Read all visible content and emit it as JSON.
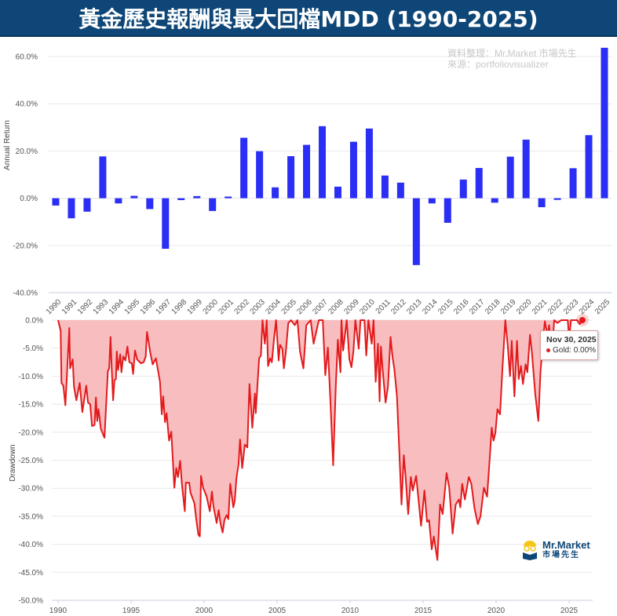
{
  "title": "黃金歷史報酬與最大回檔MDD (1990-2025)",
  "watermark": {
    "line1": "資料整理：Mr.Market 市場先生",
    "line2": "來源：portfoliovisualizer"
  },
  "logo": {
    "name": "Mr.Market",
    "subtitle": "市場先生"
  },
  "tooltip": {
    "date": "Nov 30, 2025",
    "series": "Gold",
    "value": "0.00%"
  },
  "colors": {
    "title_bg": "#0d4677",
    "bar": "#2b2ef5",
    "drawdown_line": "#e31a1c",
    "drawdown_fill": "#f8b9bc"
  },
  "chart_data": [
    {
      "type": "bar",
      "ylabel": "Annual Return",
      "ylim": [
        -40,
        60
      ],
      "yticks": [
        60,
        40,
        20,
        0,
        -20,
        -40
      ],
      "ytick_labels": [
        "60.0%",
        "40.0%",
        "20.0%",
        "0.0%",
        "-20.0%",
        "-40.0%"
      ],
      "grid": true,
      "categories": [
        "1990",
        "1991",
        "1992",
        "1993",
        "1994",
        "1995",
        "1996",
        "1997",
        "1998",
        "1999",
        "2000",
        "2001",
        "2002",
        "2003",
        "2004",
        "2005",
        "2006",
        "2007",
        "2008",
        "2009",
        "2010",
        "2011",
        "2012",
        "2013",
        "2014",
        "2015",
        "2016",
        "2017",
        "2018",
        "2019",
        "2020",
        "2021",
        "2022",
        "2023",
        "2024",
        "2025"
      ],
      "values": [
        -3.1,
        -8.5,
        -5.7,
        17.7,
        -2.2,
        1.0,
        -4.6,
        -21.4,
        -0.8,
        0.9,
        -5.4,
        0.7,
        25.6,
        19.9,
        4.6,
        17.8,
        22.6,
        30.5,
        4.9,
        23.9,
        29.5,
        9.6,
        6.6,
        -28.3,
        -2.2,
        -10.4,
        7.9,
        12.8,
        -1.9,
        17.6,
        24.8,
        -3.8,
        -0.7,
        12.7,
        26.7,
        63.7
      ]
    },
    {
      "type": "area",
      "ylabel": "Drawdown",
      "series_name": "Gold",
      "ylim": [
        -50,
        0
      ],
      "xlim": [
        1990,
        2026.5
      ],
      "yticks": [
        0,
        -5,
        -10,
        -15,
        -20,
        -25,
        -30,
        -35,
        -40,
        -45,
        -50
      ],
      "ytick_labels": [
        "0.0%",
        "-5.0%",
        "-10.0%",
        "-15.0%",
        "-20.0%",
        "-25.0%",
        "-30.0%",
        "-35.0%",
        "-40.0%",
        "-45.0%",
        "-50.0%"
      ],
      "xticks": [
        "1990",
        "1995",
        "2000",
        "2005",
        "2010",
        "2015",
        "2020",
        "2025"
      ],
      "grid": true,
      "points": [
        [
          1990.0,
          0
        ],
        [
          1990.18,
          -1.9
        ],
        [
          1990.23,
          -11.2
        ],
        [
          1990.36,
          -11.7
        ],
        [
          1990.5,
          -15.2
        ],
        [
          1990.77,
          -1.4
        ],
        [
          1990.82,
          -8.6
        ],
        [
          1991.0,
          -7.0
        ],
        [
          1991.09,
          -11.9
        ],
        [
          1991.25,
          -14.3
        ],
        [
          1991.48,
          -11.2
        ],
        [
          1991.66,
          -16.4
        ],
        [
          1991.93,
          -11.7
        ],
        [
          1992.05,
          -14.7
        ],
        [
          1992.2,
          -15.0
        ],
        [
          1992.32,
          -18.9
        ],
        [
          1992.5,
          -18.7
        ],
        [
          1992.59,
          -13.8
        ],
        [
          1992.68,
          -18.0
        ],
        [
          1992.77,
          -15.9
        ],
        [
          1992.93,
          -19.4
        ],
        [
          1993.18,
          -21.0
        ],
        [
          1993.41,
          -9.1
        ],
        [
          1993.5,
          -8.6
        ],
        [
          1993.59,
          -3.0
        ],
        [
          1993.68,
          -8.9
        ],
        [
          1993.77,
          -14.3
        ],
        [
          1993.86,
          -10.7
        ],
        [
          1993.96,
          -10.5
        ],
        [
          1994.02,
          -5.6
        ],
        [
          1994.11,
          -8.9
        ],
        [
          1994.25,
          -6.1
        ],
        [
          1994.34,
          -9.3
        ],
        [
          1994.46,
          -6.5
        ],
        [
          1994.61,
          -7.2
        ],
        [
          1994.75,
          -4.7
        ],
        [
          1994.88,
          -7.5
        ],
        [
          1995.05,
          -7.7
        ],
        [
          1995.14,
          -9.6
        ],
        [
          1995.27,
          -5.4
        ],
        [
          1995.41,
          -7.0
        ],
        [
          1995.68,
          -7.7
        ],
        [
          1995.86,
          -7.5
        ],
        [
          1996.0,
          -6.5
        ],
        [
          1996.09,
          -2.1
        ],
        [
          1996.3,
          -5.6
        ],
        [
          1996.48,
          -7.9
        ],
        [
          1996.7,
          -6.8
        ],
        [
          1996.84,
          -8.9
        ],
        [
          1996.98,
          -11.0
        ],
        [
          1997.1,
          -16.8
        ],
        [
          1997.2,
          -13.6
        ],
        [
          1997.32,
          -18.2
        ],
        [
          1997.43,
          -16.6
        ],
        [
          1997.6,
          -21.5
        ],
        [
          1997.75,
          -19.9
        ],
        [
          1997.96,
          -29.9
        ],
        [
          1998.09,
          -26.4
        ],
        [
          1998.21,
          -28.0
        ],
        [
          1998.36,
          -25.1
        ],
        [
          1998.48,
          -29.2
        ],
        [
          1998.68,
          -34.1
        ],
        [
          1998.75,
          -29.0
        ],
        [
          1998.98,
          -29.0
        ],
        [
          1999.07,
          -30.8
        ],
        [
          1999.34,
          -32.7
        ],
        [
          1999.46,
          -35.5
        ],
        [
          1999.61,
          -38.3
        ],
        [
          1999.71,
          -38.6
        ],
        [
          1999.79,
          -27.8
        ],
        [
          1999.93,
          -29.9
        ],
        [
          2000.18,
          -31.5
        ],
        [
          2000.29,
          -32.9
        ],
        [
          2000.39,
          -34.1
        ],
        [
          2000.54,
          -30.6
        ],
        [
          2000.64,
          -33.2
        ],
        [
          2000.86,
          -36.2
        ],
        [
          2001.0,
          -33.9
        ],
        [
          2001.12,
          -36.2
        ],
        [
          2001.27,
          -37.9
        ],
        [
          2001.39,
          -35.7
        ],
        [
          2001.54,
          -34.8
        ],
        [
          2001.66,
          -35.5
        ],
        [
          2001.79,
          -29.2
        ],
        [
          2002.0,
          -33.4
        ],
        [
          2002.1,
          -32.2
        ],
        [
          2002.21,
          -28.3
        ],
        [
          2002.36,
          -25.7
        ],
        [
          2002.46,
          -21.3
        ],
        [
          2002.61,
          -26.4
        ],
        [
          2002.79,
          -22.2
        ],
        [
          2002.96,
          -22.7
        ],
        [
          2003.11,
          -11.4
        ],
        [
          2003.3,
          -19.2
        ],
        [
          2003.48,
          -13.1
        ],
        [
          2003.54,
          -16.6
        ],
        [
          2003.77,
          -6.8
        ],
        [
          2003.89,
          -6.3
        ],
        [
          2004.0,
          0
        ],
        [
          2004.16,
          -4.2
        ],
        [
          2004.29,
          0
        ],
        [
          2004.38,
          -8.2
        ],
        [
          2004.52,
          -6.8
        ],
        [
          2004.64,
          -7.5
        ],
        [
          2004.79,
          -3.3
        ],
        [
          2004.93,
          0
        ],
        [
          2005.11,
          -7.2
        ],
        [
          2005.2,
          -4.4
        ],
        [
          2005.36,
          -5.1
        ],
        [
          2005.46,
          -8.6
        ],
        [
          2005.59,
          -5.8
        ],
        [
          2005.77,
          -0.5
        ],
        [
          2005.95,
          0
        ],
        [
          2006.21,
          -0.9
        ],
        [
          2006.39,
          0
        ],
        [
          2006.57,
          -5.6
        ],
        [
          2006.8,
          -8.6
        ],
        [
          2007.0,
          -0.9
        ],
        [
          2007.3,
          0
        ],
        [
          2007.5,
          -4.2
        ],
        [
          2007.86,
          0
        ],
        [
          2008.13,
          0
        ],
        [
          2008.3,
          -9.8
        ],
        [
          2008.48,
          -4.9
        ],
        [
          2008.66,
          -15.0
        ],
        [
          2008.84,
          -25.9
        ],
        [
          2009.02,
          -11.7
        ],
        [
          2009.16,
          -3.5
        ],
        [
          2009.34,
          -9.3
        ],
        [
          2009.41,
          0
        ],
        [
          2009.52,
          -5.4
        ],
        [
          2009.64,
          -2.8
        ],
        [
          2009.77,
          0
        ],
        [
          2009.95,
          -7.0
        ],
        [
          2010.09,
          -8.4
        ],
        [
          2010.23,
          -5.4
        ],
        [
          2010.36,
          0
        ],
        [
          2010.59,
          -5.1
        ],
        [
          2010.71,
          0
        ],
        [
          2010.98,
          0
        ],
        [
          2011.11,
          -6.3
        ],
        [
          2011.25,
          0
        ],
        [
          2011.48,
          -4.2
        ],
        [
          2011.61,
          0
        ],
        [
          2011.75,
          -11.0
        ],
        [
          2011.91,
          -4.2
        ],
        [
          2012.02,
          -14.5
        ],
        [
          2012.11,
          -4.7
        ],
        [
          2012.23,
          -8.9
        ],
        [
          2012.43,
          -14.7
        ],
        [
          2012.59,
          -11.9
        ],
        [
          2012.77,
          -3.0
        ],
        [
          2012.89,
          -6.3
        ],
        [
          2013.04,
          -8.9
        ],
        [
          2013.21,
          -13.6
        ],
        [
          2013.34,
          -21.5
        ],
        [
          2013.52,
          -32.9
        ],
        [
          2013.68,
          -24.1
        ],
        [
          2013.8,
          -28.0
        ],
        [
          2013.98,
          -34.6
        ],
        [
          2014.16,
          -28.0
        ],
        [
          2014.29,
          -30.4
        ],
        [
          2014.52,
          -27.8
        ],
        [
          2014.64,
          -30.8
        ],
        [
          2014.86,
          -36.7
        ],
        [
          2015.09,
          -30.4
        ],
        [
          2015.27,
          -36.0
        ],
        [
          2015.41,
          -35.7
        ],
        [
          2015.59,
          -40.9
        ],
        [
          2015.73,
          -38.6
        ],
        [
          2015.98,
          -42.8
        ],
        [
          2016.16,
          -32.9
        ],
        [
          2016.34,
          -34.6
        ],
        [
          2016.61,
          -27.3
        ],
        [
          2016.79,
          -29.9
        ],
        [
          2017.02,
          -38.1
        ],
        [
          2017.23,
          -32.9
        ],
        [
          2017.45,
          -32.0
        ],
        [
          2017.55,
          -33.4
        ],
        [
          2017.68,
          -29.2
        ],
        [
          2017.86,
          -32.0
        ],
        [
          2018.13,
          -28.0
        ],
        [
          2018.3,
          -29.2
        ],
        [
          2018.52,
          -33.6
        ],
        [
          2018.75,
          -36.4
        ],
        [
          2018.93,
          -35.0
        ],
        [
          2019.16,
          -29.9
        ],
        [
          2019.38,
          -31.5
        ],
        [
          2019.55,
          -25.2
        ],
        [
          2019.7,
          -19.2
        ],
        [
          2019.82,
          -21.5
        ],
        [
          2019.95,
          -20.1
        ],
        [
          2020.09,
          -15.9
        ],
        [
          2020.27,
          -16.8
        ],
        [
          2020.41,
          -9.8
        ],
        [
          2020.63,
          0
        ],
        [
          2020.8,
          -4.7
        ],
        [
          2020.95,
          -10.0
        ],
        [
          2021.07,
          -3.7
        ],
        [
          2021.25,
          -13.6
        ],
        [
          2021.43,
          -3.7
        ],
        [
          2021.55,
          -10.5
        ],
        [
          2021.7,
          -8.2
        ],
        [
          2021.84,
          -11.4
        ],
        [
          2022.02,
          -7.9
        ],
        [
          2022.14,
          -9.3
        ],
        [
          2022.32,
          -2.6
        ],
        [
          2022.46,
          -6.1
        ],
        [
          2022.68,
          -13.1
        ],
        [
          2022.89,
          -18.0
        ],
        [
          2023.04,
          -9.3
        ],
        [
          2023.21,
          -3.7
        ],
        [
          2023.34,
          -0.2
        ],
        [
          2023.52,
          -2.8
        ],
        [
          2023.63,
          -0.9
        ],
        [
          2023.8,
          -7.0
        ],
        [
          2023.98,
          0
        ],
        [
          2024.2,
          -0.5
        ],
        [
          2024.46,
          0
        ],
        [
          2024.91,
          0
        ],
        [
          2025.0,
          -3.3
        ],
        [
          2025.13,
          0
        ],
        [
          2025.55,
          0
        ],
        [
          2025.73,
          -0.7
        ],
        [
          2025.91,
          0
        ]
      ]
    }
  ]
}
